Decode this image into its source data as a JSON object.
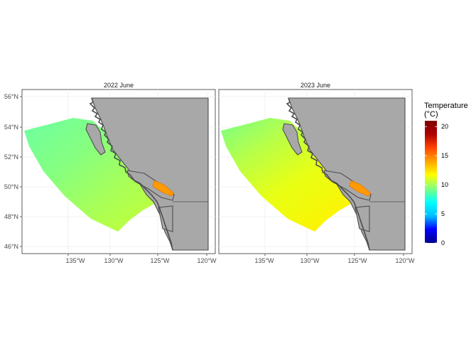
{
  "panels": [
    {
      "title": "2022 June",
      "pattern": "p2022"
    },
    {
      "title": "2023 June",
      "pattern": "p2023"
    }
  ],
  "axes": {
    "x_ticks": [
      "135°W",
      "130°W",
      "125°W",
      "120°W"
    ],
    "y_ticks": [
      "56°N",
      "54°N",
      "52°N",
      "50°N",
      "48°N",
      "46°N"
    ]
  },
  "legend": {
    "title_line1": "Temperature",
    "title_line2": "(°C)",
    "ticks": [
      "20",
      "15",
      "10",
      "5",
      "0"
    ],
    "range": [
      0,
      21
    ]
  },
  "colors": {
    "land": "#a8a8a8",
    "coast": "#4d4d4d",
    "grid": "#ebebeb",
    "panel_border": "#333333",
    "colorbar": [
      "#00008b",
      "#0000ff",
      "#00bfff",
      "#00ffff",
      "#7fff7f",
      "#ffff00",
      "#ffa500",
      "#ff4500",
      "#b00000",
      "#800000"
    ]
  },
  "chart_data": {
    "type": "heatmap",
    "variable": "Temperature (°C)",
    "panels": [
      {
        "title": "2022 June",
        "typical_range": [
          9,
          13
        ],
        "hotspot": "Strait of Georgia ≈ 15-16"
      },
      {
        "title": "2023 June",
        "typical_range": [
          11,
          15
        ],
        "hotspot": "Strait of Georgia ≈ 15-16"
      }
    ],
    "xlim": [
      "139.5°W",
      "119.5°W"
    ],
    "ylim": [
      "45.6°N",
      "56.5°N"
    ],
    "colorbar_range": [
      0,
      21
    ]
  }
}
